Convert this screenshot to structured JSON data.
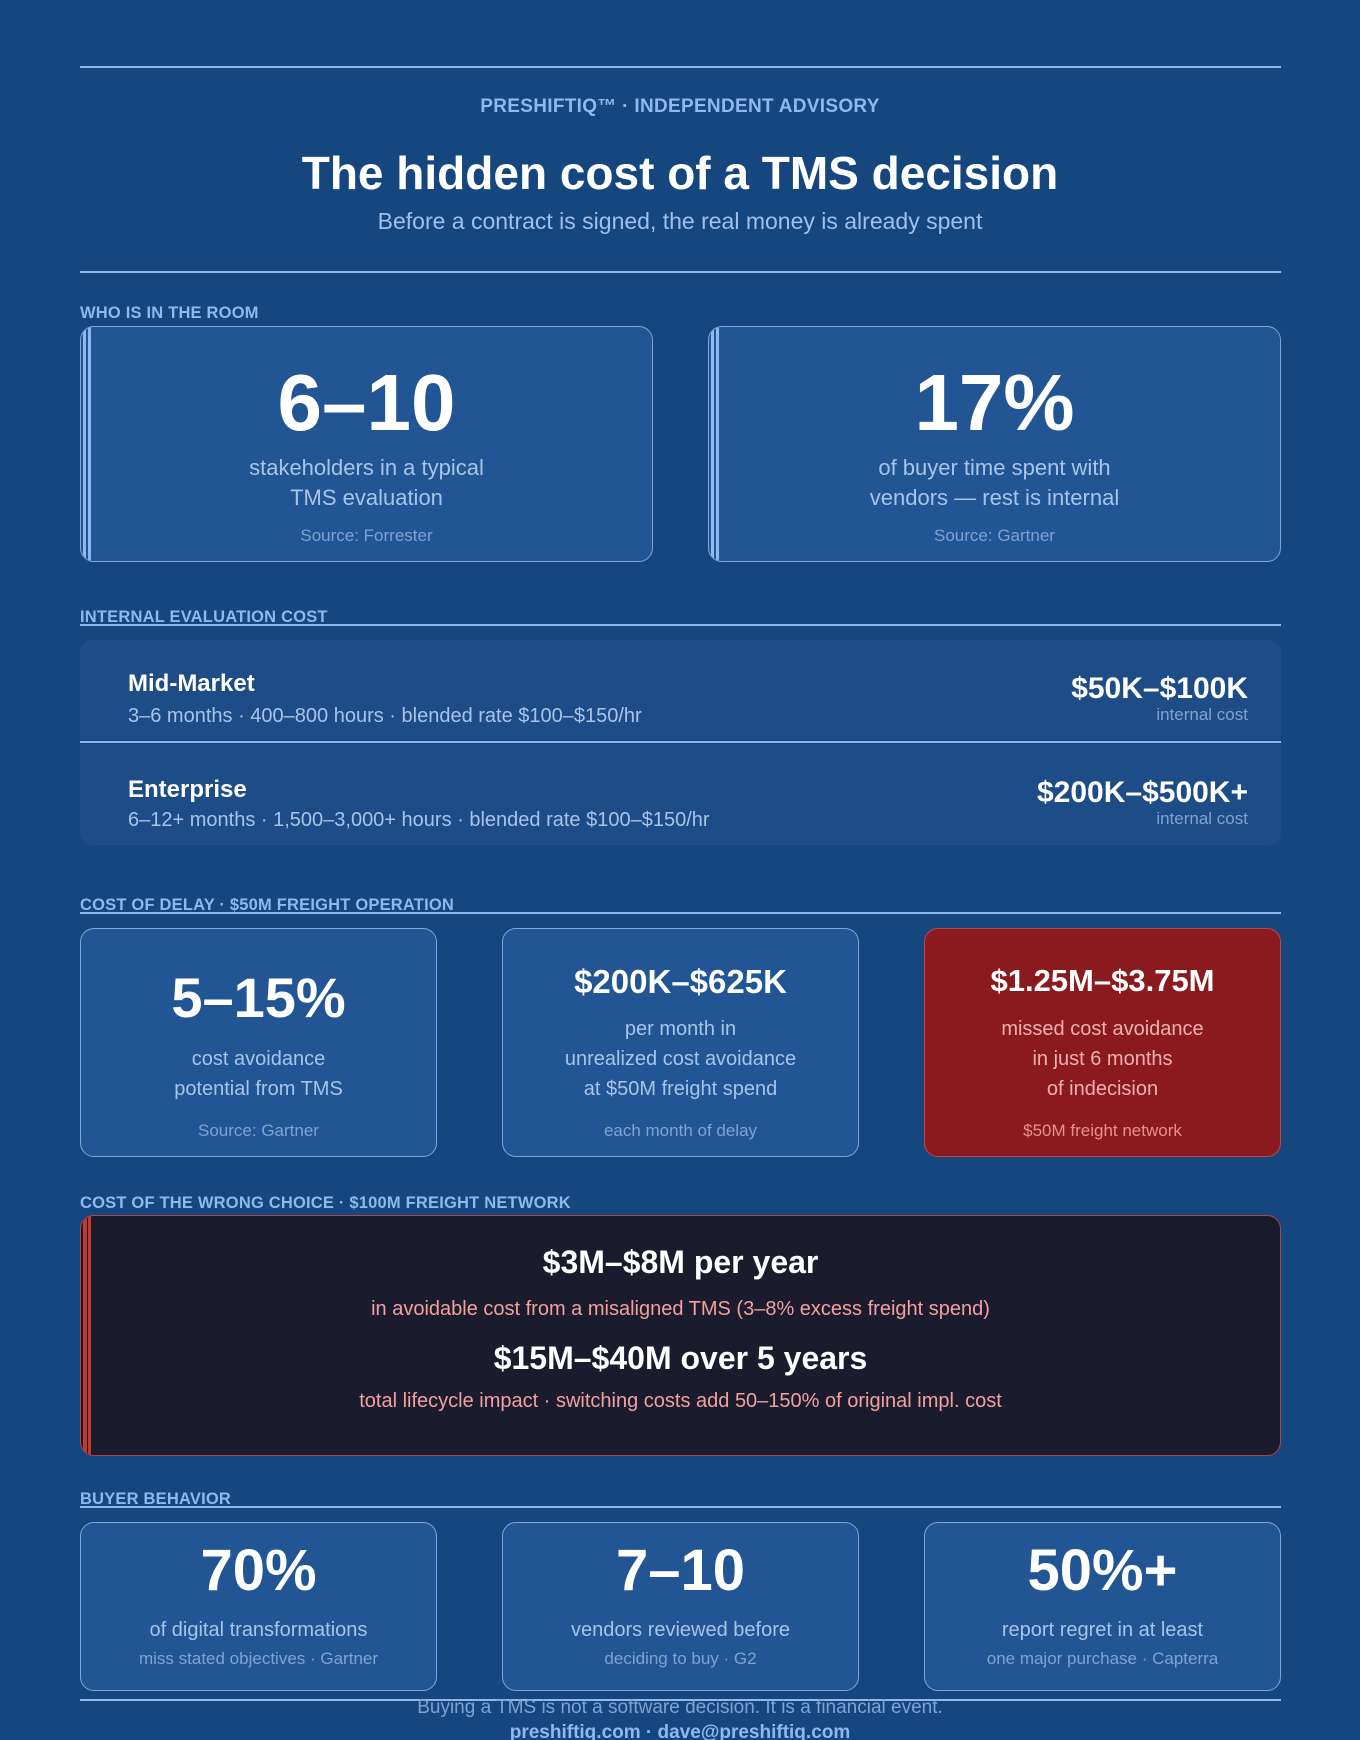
{
  "header": {
    "brand": "PRESHIFTIQ™  ·  INDEPENDENT ADVISORY",
    "title": "The hidden cost of a TMS decision",
    "subtitle": "Before a contract is signed, the real money is already spent"
  },
  "room": {
    "label": "WHO IS IN THE ROOM",
    "cards": [
      {
        "stat": "6–10",
        "desc_line1": "stakeholders in a typical",
        "desc_line2": "TMS evaluation",
        "source": "Source: Forrester"
      },
      {
        "stat": "17%",
        "desc_line1": "of buyer time spent with",
        "desc_line2": "vendors — rest is internal",
        "source": "Source: Gartner"
      }
    ]
  },
  "evaluation": {
    "label": "INTERNAL EVALUATION COST",
    "rows": [
      {
        "name": "Mid-Market",
        "meta": "3–6 months  ·  400–800 hours  ·  blended rate $100–$150/hr",
        "amount": "$50K–$100K",
        "sub": "internal cost"
      },
      {
        "name": "Enterprise",
        "meta": "6–12+ months  ·  1,500–3,000+ hours  ·  blended rate $100–$150/hr",
        "amount": "$200K–$500K+",
        "sub": "internal cost"
      }
    ]
  },
  "delay": {
    "label": "COST OF DELAY  ·  $50M FREIGHT OPERATION",
    "cards": [
      {
        "stat": "5–15%",
        "lines": [
          "cost avoidance",
          "potential from TMS"
        ],
        "source": "Source: Gartner"
      },
      {
        "stat": "$200K–$625K",
        "lines": [
          "per month in",
          "unrealized cost avoidance",
          "at $50M freight spend"
        ],
        "source": "each month of delay"
      },
      {
        "stat": "$1.25M–$3.75M",
        "lines": [
          "missed cost avoidance",
          "in just 6 months",
          "of indecision"
        ],
        "source": "$50M freight network"
      }
    ]
  },
  "wrong_choice": {
    "label": "COST OF THE WRONG CHOICE  ·  $100M FREIGHT NETWORK",
    "line1_big": "$3M–$8M per year",
    "line1_desc": "in avoidable cost from a misaligned TMS  (3–8% excess freight spend)",
    "line2_big": "$15M–$40M over 5 years",
    "line2_desc": "total lifecycle impact  ·  switching costs add 50–150% of original impl. cost"
  },
  "behavior": {
    "label": "BUYER BEHAVIOR",
    "cards": [
      {
        "stat": "70%",
        "desc": "of digital transformations",
        "source": "miss stated objectives · Gartner"
      },
      {
        "stat": "7–10",
        "desc": "vendors reviewed before",
        "source": "deciding to buy · G2"
      },
      {
        "stat": "50%+",
        "desc": "report regret in at least",
        "source": "one major purchase · Capterra"
      }
    ]
  },
  "footer": {
    "tagline": "Buying a TMS is not a software decision. It is a financial event.",
    "contact": "preshiftiq.com  ·  dave@preshiftiq.com"
  },
  "colors": {
    "background": "#16467e",
    "card": "#215593",
    "accent": "#8fb8ec",
    "alert_red": "#8b1a1e",
    "dark_panel": "#1b1b2e"
  }
}
